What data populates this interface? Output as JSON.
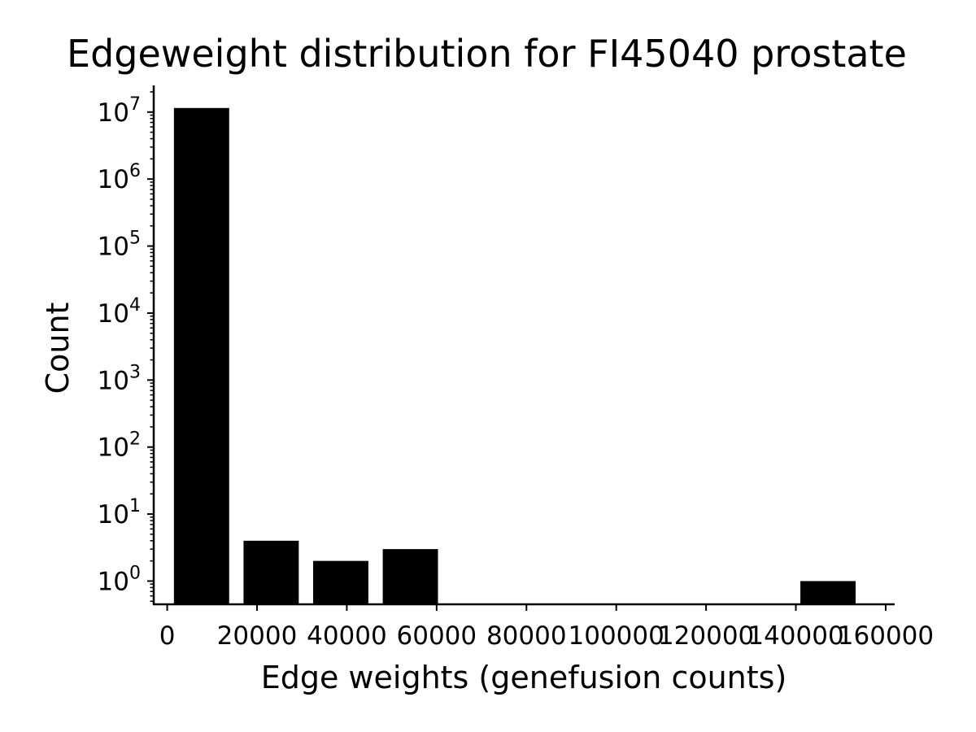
{
  "chart_data": {
    "type": "bar",
    "title": "Edgeweight distribution for FI45040 prostate",
    "xlabel": "Edge weights (genefusion counts)",
    "ylabel": "Count",
    "yscale": "log",
    "xlim": [
      -3000,
      162000
    ],
    "ylim": [
      0.45,
      25000000
    ],
    "xticks": [
      0,
      20000,
      40000,
      60000,
      80000,
      100000,
      120000,
      140000,
      160000
    ],
    "xtick_labels": [
      "0",
      "20000",
      "40000",
      "60000",
      "80000",
      "100000",
      "120000",
      "140000",
      "160000"
    ],
    "yticks": [
      {
        "base": "10",
        "exp": "0",
        "value": 1
      },
      {
        "base": "10",
        "exp": "1",
        "value": 10
      },
      {
        "base": "10",
        "exp": "2",
        "value": 100
      },
      {
        "base": "10",
        "exp": "3",
        "value": 1000
      },
      {
        "base": "10",
        "exp": "4",
        "value": 10000
      },
      {
        "base": "10",
        "exp": "5",
        "value": 100000
      },
      {
        "base": "10",
        "exp": "6",
        "value": 1000000
      },
      {
        "base": "10",
        "exp": "7",
        "value": 10000000
      }
    ],
    "bar_color": "#000000",
    "grid": false,
    "bars": [
      {
        "x0": 1500,
        "x1": 13800,
        "value": 11500000
      },
      {
        "x0": 17000,
        "x1": 29300,
        "value": 4
      },
      {
        "x0": 32500,
        "x1": 44800,
        "value": 2
      },
      {
        "x0": 48000,
        "x1": 60300,
        "value": 3
      },
      {
        "x0": 141000,
        "x1": 153300,
        "value": 1
      }
    ]
  }
}
